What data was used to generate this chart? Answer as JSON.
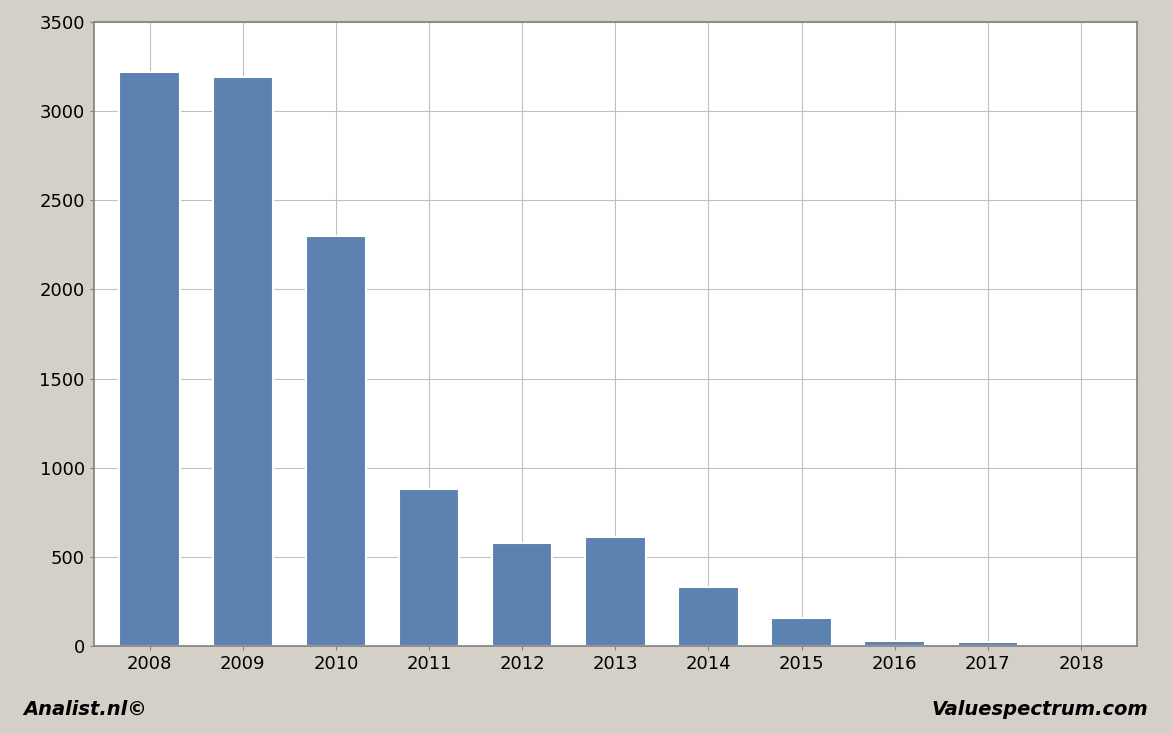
{
  "categories": [
    "2008",
    "2009",
    "2010",
    "2011",
    "2012",
    "2013",
    "2014",
    "2015",
    "2016",
    "2017",
    "2018"
  ],
  "values": [
    3220,
    3190,
    2300,
    880,
    580,
    610,
    330,
    155,
    28,
    20,
    0
  ],
  "bar_color": "#5b82b0",
  "ylim": [
    0,
    3500
  ],
  "yticks": [
    0,
    500,
    1000,
    1500,
    2000,
    2500,
    3000,
    3500
  ],
  "figure_bg_color": "#d4d0c8",
  "plot_bg_color": "#ffffff",
  "grid_color": "#c0c0c0",
  "border_color": "#808080",
  "footer_left": "Analist.nl©",
  "footer_right": "Valuespectrum.com",
  "footer_fontsize": 14,
  "bar_width": 0.65,
  "tick_fontsize": 13
}
